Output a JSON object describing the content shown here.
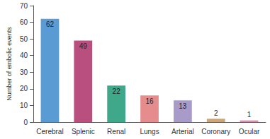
{
  "chart_data": {
    "type": "bar",
    "y_label": "Number of embolic events",
    "categories": [
      "Cerebral",
      "Splenic",
      "Renal",
      "Lungs",
      "Arterial",
      "Coronary",
      "Ocular"
    ],
    "values": [
      62,
      49,
      22,
      16,
      13,
      2,
      1
    ],
    "colors": [
      "#5a9bd4",
      "#b84f7e",
      "#3fa88a",
      "#e58c8c",
      "#a99bc9",
      "#c9a77a",
      "#d98fb0"
    ],
    "ylim": [
      0,
      70
    ],
    "yticks": [
      0,
      10,
      20,
      30,
      40,
      50,
      60,
      70
    ],
    "grid": false,
    "data_labels": true
  }
}
